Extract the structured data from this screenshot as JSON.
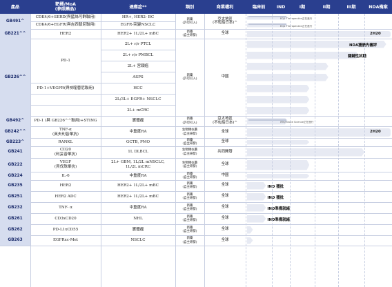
{
  "headers": {
    "product": "產品",
    "target": "靶標/MoA\n(參照藥品)",
    "indication": "適應症**",
    "category": "類別",
    "rights": "商業權利",
    "preclinical": "臨床前",
    "ind": "IND",
    "phase1": "I期",
    "phase2": "II期",
    "phase3": "III期",
    "nda": "NDA備案"
  },
  "rows": [
    {
      "code": "GB491^",
      "category": "新藥\n(許可引入)",
      "rights": "亞太地區\n(不包括日本)^",
      "lines": [
        {
          "target": "CDK4/6+SERD(與藍絲可群聯用)",
          "indication": "HR+, HER2- BC",
          "stage": 0.29,
          "note": "EQ1 Therapeutics正在進行"
        },
        {
          "target": "CDK4/6+EGFR(與吉西替尼聯用)",
          "indication": "EGFR-突變NSCLC",
          "stage": 0.29,
          "note": "EQ1 Therapeutics正在進行"
        }
      ]
    },
    {
      "code": "GB221^^",
      "category": "新藥\n(自主研發)",
      "rights": "全球",
      "lines": [
        {
          "target": "HER2",
          "indication": "HER2+ 1L/2L+ mBC",
          "stage": 1.0,
          "label": "2H20"
        }
      ]
    },
    {
      "code": "GB226^^",
      "category": "新藥\n(許可引入)",
      "rights": "中國",
      "lines": [
        {
          "target": "",
          "indication": "2L+ r/r PTCL",
          "stage": 0.97,
          "label": "NDA獲優先審評"
        },
        {
          "target": "PD-1",
          "indication": "2L+ r/r PMBCL",
          "stage": 0.78,
          "label": "關鍵性試驗"
        },
        {
          "target": "",
          "indication": "2L+ 宮頸癌",
          "stage": 0.57
        },
        {
          "target": "",
          "indication": "ASPS",
          "stage": 0.57
        },
        {
          "target": "PD-1+VEGFR(與呋喹替尼聯用)",
          "indication": "HCC",
          "stage": 0.44
        },
        {
          "target": "PD-1+VEGFR(與呋喹替尼聯用)",
          "indication": "2L/3L+ EGFR+ NSCLC",
          "stage": 0.44
        },
        {
          "target": "",
          "indication": "2L+ mCRC",
          "stage": 0.44
        }
      ]
    },
    {
      "code": "GB492^",
      "category": "新藥\n(許可引入)",
      "rights": "亞太地區\n(不包括日本)^",
      "lines": [
        {
          "target": "PD-1 (與 GB226^^聯用)+STING",
          "indication": "實體瘤",
          "stage": 0.29,
          "note": "IFM/Innate Science正在進行"
        }
      ]
    },
    {
      "code": "GB242^^",
      "category": "生物類似藥\n(自主研發)",
      "rights": "全球",
      "lines": [
        {
          "target": "TNF-α\n(英夫利昔單抗)",
          "indication": "中重度RA",
          "stage": 1.0,
          "label": "2H20"
        }
      ]
    },
    {
      "code": "GB223^",
      "category": "新藥\n(自主研發)",
      "rights": "全球",
      "lines": [
        {
          "target": "RANKL",
          "indication": "GCTB, PMO",
          "stage": 0.44
        }
      ]
    },
    {
      "code": "GB241",
      "category": "生物類似藥\n(自主研發)",
      "rights": "共同開發",
      "lines": [
        {
          "target": "CD20\n(利妥昔單抗)",
          "indication": "1L DLBCL",
          "stage": 0.82
        }
      ]
    },
    {
      "code": "GB222",
      "category": "生物類似藥\n(自主研發)",
      "rights": "全球",
      "lines": [
        {
          "target": "VEGF\n(貝伐珠單抗)",
          "indication": "2L+ GBM, 1L/2L mNSCLC,\n1L/2L mCRC",
          "stage": 0.44
        }
      ]
    },
    {
      "code": "GB224",
      "category": "新藥\n(自主研發)",
      "rights": "中國",
      "lines": [
        {
          "target": "IL-6",
          "indication": "中重度RA",
          "stage": 0.44
        }
      ]
    },
    {
      "code": "GB235",
      "category": "新藥\n(自主研發)",
      "rights": "全球",
      "lines": [
        {
          "target": "HER2",
          "indication": "HER2+ 1L/2L+ mBC",
          "stage": 0.14,
          "label": "IND 獲批"
        }
      ]
    },
    {
      "code": "GB251",
      "category": "新藥\n(自主研發)",
      "rights": "全球",
      "lines": [
        {
          "target": "HER2 ADC",
          "indication": "HER2+ 1L/2L+ mBC",
          "stage": 0.14,
          "label": "IND 獲批"
        }
      ]
    },
    {
      "code": "GB232",
      "category": "新藥\n(自主研發)",
      "rights": "全球",
      "lines": [
        {
          "target": "TNF- α",
          "indication": "中重度RA",
          "stage": 0.14,
          "label": "IND準備就緒"
        }
      ]
    },
    {
      "code": "GB261",
      "category": "新藥\n(自主研發)",
      "rights": "全球",
      "lines": [
        {
          "target": "CD3xCD20",
          "indication": "NHL",
          "stage": 0.14,
          "label": "IND準備就緒"
        }
      ]
    },
    {
      "code": "GB262",
      "category": "新藥\n(自主研發)",
      "rights": "全球",
      "lines": [
        {
          "target": "PD-L1xCD55",
          "indication": "實體瘤",
          "stage": 0.05
        }
      ]
    },
    {
      "code": "GB263",
      "category": "新藥\n(自主研發)",
      "rights": "全球",
      "lines": [
        {
          "target": "EGFRxc-Met",
          "indication": "NSCLC",
          "stage": 0.05
        }
      ]
    }
  ]
}
